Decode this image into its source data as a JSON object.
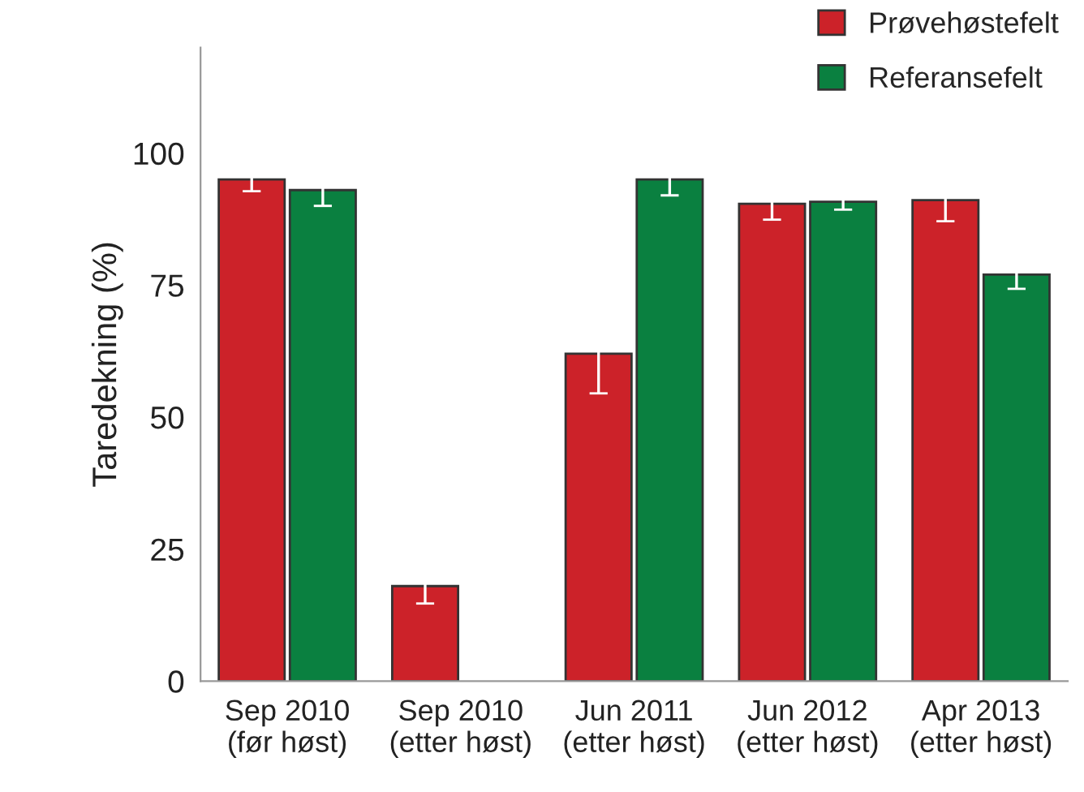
{
  "chart_data": {
    "type": "bar",
    "ylabel": "Taredekning (%)",
    "categories": [
      "Sep 2010\n(før høst)",
      "Sep 2010\n(etter høst)",
      "Jun 2011\n(etter høst)",
      "Jun 2012\n(etter høst)",
      "Apr 2013\n(etter høst)"
    ],
    "series": [
      {
        "name": "Prøvehøstefelt",
        "color": "#cc2229",
        "values": [
          95,
          18,
          62,
          90.4,
          91.1
        ],
        "errors": [
          2.2,
          3.3,
          7.5,
          3,
          4
        ]
      },
      {
        "name": "Referansefelt",
        "color": "#0a8040",
        "values": [
          93,
          null,
          95,
          90.8,
          77
        ],
        "errors": [
          3,
          null,
          3,
          1.5,
          2.7
        ]
      }
    ],
    "ylim": [
      0,
      120
    ],
    "yticks": [
      0,
      25,
      50,
      75,
      100
    ],
    "grid": false,
    "legend": "top right"
  }
}
